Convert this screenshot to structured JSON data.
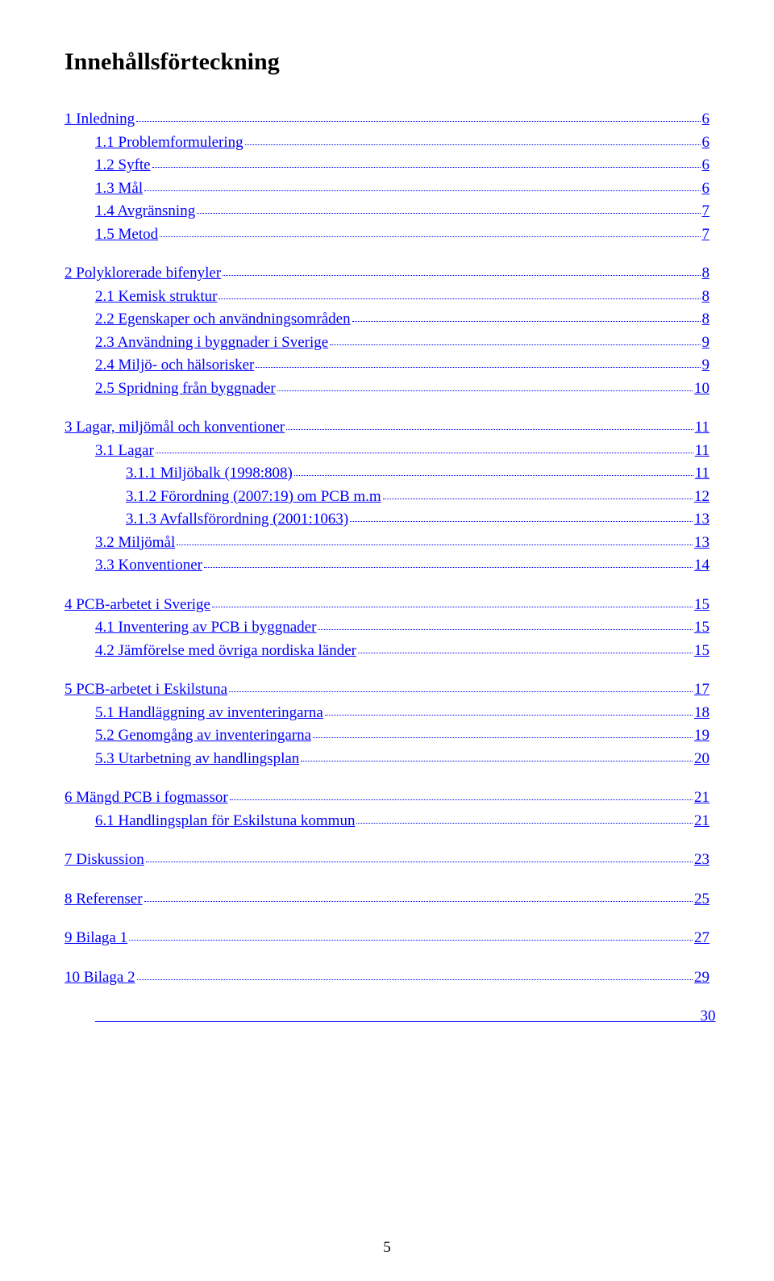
{
  "title": "Innehållsförteckning",
  "link_color": "#0000ff",
  "text_color": "#000000",
  "background_color": "#ffffff",
  "font_family": "Times New Roman",
  "title_fontsize": 30,
  "body_fontsize": 19,
  "page_number": "5",
  "toc": [
    {
      "indent": 0,
      "label": "1 Inledning",
      "page": "6",
      "gap_before": false
    },
    {
      "indent": 1,
      "label": "1.1 Problemformulering",
      "page": "6"
    },
    {
      "indent": 1,
      "label": "1.2 Syfte",
      "page": "6"
    },
    {
      "indent": 1,
      "label": "1.3 Mål",
      "page": "6"
    },
    {
      "indent": 1,
      "label": "1.4 Avgränsning",
      "page": "7"
    },
    {
      "indent": 1,
      "label": "1.5 Metod",
      "page": "7"
    },
    {
      "indent": 0,
      "label": "2 Polyklorerade bifenyler",
      "page": "8",
      "gap_before": true
    },
    {
      "indent": 1,
      "label": "2.1 Kemisk struktur",
      "page": "8"
    },
    {
      "indent": 1,
      "label": "2.2 Egenskaper och användningsområden",
      "page": "8"
    },
    {
      "indent": 1,
      "label": "2.3 Användning i byggnader i Sverige",
      "page": " 9"
    },
    {
      "indent": 1,
      "label": "2.4 Miljö- och hälsorisker",
      "page": "9"
    },
    {
      "indent": 1,
      "label": "2.5 Spridning från byggnader",
      "page": " 10"
    },
    {
      "indent": 0,
      "label": "3 Lagar, miljömål och konventioner",
      "page": "11",
      "gap_before": true
    },
    {
      "indent": 1,
      "label": "3.1 Lagar",
      "page": "11"
    },
    {
      "indent": 2,
      "label": "3.1.1 Miljöbalk (1998:808)",
      "page": "11"
    },
    {
      "indent": 2,
      "label": "3.1.2 Förordning (2007:19) om PCB m.m",
      "page": "12"
    },
    {
      "indent": 2,
      "label": "3.1.3 Avfallsförordning (2001:1063)",
      "page": "13"
    },
    {
      "indent": 1,
      "label": "3.2 Miljömål",
      "page": "13"
    },
    {
      "indent": 1,
      "label": "3.3 Konventioner",
      "page": "14"
    },
    {
      "indent": 0,
      "label": "4 PCB-arbetet i Sverige",
      "page": " 15",
      "gap_before": true
    },
    {
      "indent": 1,
      "label": "4.1 Inventering av PCB i byggnader",
      "page": "15"
    },
    {
      "indent": 1,
      "label": "4.2 Jämförelse med övriga nordiska länder",
      "page": " 15"
    },
    {
      "indent": 0,
      "label": "5 PCB-arbetet i Eskilstuna",
      "page": "17",
      "gap_before": true
    },
    {
      "indent": 1,
      "label": "5.1 Handläggning av inventeringarna",
      "page": "18"
    },
    {
      "indent": 1,
      "label": "5.2 Genomgång av inventeringarna",
      "page": "19"
    },
    {
      "indent": 1,
      "label": "5.3 Utarbetning av handlingsplan",
      "page": " 20"
    },
    {
      "indent": 0,
      "label": "6 Mängd PCB i fogmassor",
      "page": "21",
      "gap_before": true
    },
    {
      "indent": 1,
      "label": "6.1 Handlingsplan för Eskilstuna kommun",
      "page": "21"
    },
    {
      "indent": 0,
      "label": "7 Diskussion",
      "page": "23",
      "gap_before": true
    },
    {
      "indent": 0,
      "label": "8 Referenser",
      "page": " 25",
      "gap_before": true
    },
    {
      "indent": 0,
      "label": "9 Bilaga 1",
      "page": " 27",
      "gap_before": true
    },
    {
      "indent": 0,
      "label": "10 Bilaga 2",
      "page": " 29",
      "gap_before": true
    },
    {
      "indent": 1,
      "label": "                                                                                                                                                              ",
      "page": "30",
      "gap_before": true,
      "leader_only": true
    }
  ]
}
